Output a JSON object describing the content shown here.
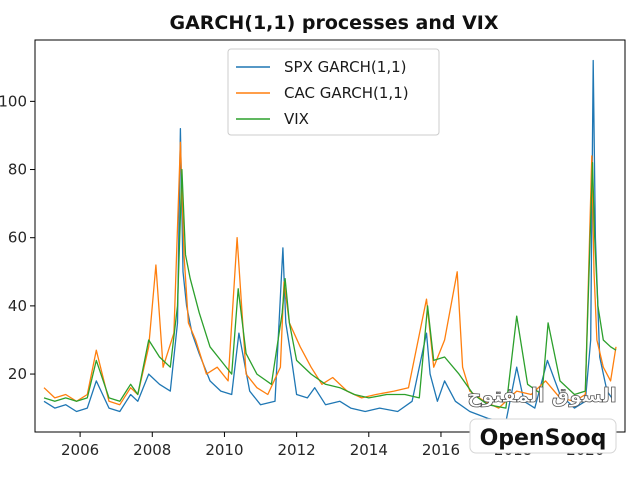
{
  "chart_data": {
    "type": "line",
    "title": "GARCH(1,1) processes and VIX",
    "xlabel": "",
    "ylabel": "",
    "xlim": [
      2004.75,
      2021.1
    ],
    "ylim": [
      3,
      118
    ],
    "grid": false,
    "legend_position": "top-center",
    "x_ticks": [
      "2006",
      "2008",
      "2010",
      "2012",
      "2014",
      "2016",
      "2018",
      "2020"
    ],
    "x_tick_values": [
      2006,
      2008,
      2010,
      2012,
      2014,
      2016,
      2018,
      2020
    ],
    "y_ticks": [
      "20",
      "40",
      "60",
      "80",
      "100"
    ],
    "y_tick_values": [
      20,
      40,
      60,
      80,
      100
    ],
    "series": [
      {
        "name": "SPX GARCH(1,1)",
        "color": "#1f77b4",
        "x": [
          2005.0,
          2005.3,
          2005.6,
          2005.9,
          2006.2,
          2006.45,
          2006.8,
          2007.1,
          2007.4,
          2007.6,
          2007.9,
          2008.2,
          2008.5,
          2008.7,
          2008.78,
          2008.85,
          2008.95,
          2009.1,
          2009.3,
          2009.6,
          2009.9,
          2010.2,
          2010.4,
          2010.7,
          2011.0,
          2011.4,
          2011.62,
          2011.7,
          2011.85,
          2012.0,
          2012.3,
          2012.5,
          2012.8,
          2013.2,
          2013.5,
          2013.9,
          2014.3,
          2014.8,
          2015.2,
          2015.6,
          2015.7,
          2015.9,
          2016.1,
          2016.4,
          2016.8,
          2017.3,
          2017.8,
          2018.1,
          2018.3,
          2018.6,
          2018.95,
          2019.3,
          2019.7,
          2020.0,
          2020.15,
          2020.22,
          2020.28,
          2020.4,
          2020.6,
          2020.8
        ],
        "y": [
          12,
          10,
          11,
          9,
          10,
          18,
          10,
          9,
          14,
          12,
          20,
          17,
          15,
          35,
          92,
          50,
          40,
          32,
          26,
          18,
          15,
          14,
          32,
          15,
          11,
          12,
          57,
          35,
          25,
          14,
          13,
          16,
          11,
          12,
          10,
          9,
          10,
          9,
          12,
          32,
          20,
          12,
          18,
          12,
          9,
          7,
          6,
          22,
          12,
          10,
          24,
          14,
          10,
          12,
          30,
          112,
          60,
          25,
          15,
          12
        ]
      },
      {
        "name": "CAC GARCH(1,1)",
        "color": "#ff7f0e",
        "x": [
          2005.0,
          2005.3,
          2005.6,
          2005.9,
          2006.2,
          2006.45,
          2006.8,
          2007.1,
          2007.4,
          2007.6,
          2007.9,
          2008.1,
          2008.3,
          2008.6,
          2008.78,
          2008.88,
          2009.0,
          2009.2,
          2009.5,
          2009.8,
          2010.1,
          2010.35,
          2010.6,
          2010.9,
          2011.2,
          2011.55,
          2011.65,
          2011.8,
          2012.1,
          2012.4,
          2012.7,
          2013.0,
          2013.4,
          2013.8,
          2014.2,
          2014.7,
          2015.1,
          2015.6,
          2015.8,
          2016.1,
          2016.45,
          2016.6,
          2016.8,
          2017.2,
          2017.6,
          2018.1,
          2018.5,
          2018.9,
          2019.3,
          2019.7,
          2020.0,
          2020.18,
          2020.24,
          2020.32,
          2020.5,
          2020.7,
          2020.85
        ],
        "y": [
          16,
          13,
          14,
          12,
          14,
          27,
          12,
          11,
          16,
          14,
          28,
          52,
          22,
          32,
          88,
          55,
          35,
          30,
          20,
          22,
          18,
          60,
          20,
          16,
          14,
          22,
          47,
          35,
          28,
          22,
          17,
          19,
          15,
          13,
          14,
          15,
          16,
          42,
          22,
          30,
          50,
          22,
          15,
          12,
          10,
          15,
          14,
          18,
          13,
          12,
          14,
          84,
          50,
          30,
          22,
          18,
          28
        ]
      },
      {
        "name": "VIX",
        "color": "#2ca02c",
        "x": [
          2005.0,
          2005.3,
          2005.6,
          2005.9,
          2006.2,
          2006.45,
          2006.8,
          2007.1,
          2007.4,
          2007.6,
          2007.9,
          2008.2,
          2008.5,
          2008.7,
          2008.82,
          2008.92,
          2009.05,
          2009.3,
          2009.6,
          2009.9,
          2010.2,
          2010.38,
          2010.6,
          2010.9,
          2011.3,
          2011.6,
          2011.68,
          2011.8,
          2012.0,
          2012.4,
          2012.8,
          2013.2,
          2013.6,
          2014.0,
          2014.5,
          2015.0,
          2015.4,
          2015.63,
          2015.8,
          2016.1,
          2016.5,
          2016.9,
          2017.3,
          2017.8,
          2018.1,
          2018.4,
          2018.8,
          2018.97,
          2019.3,
          2019.7,
          2020.0,
          2020.2,
          2020.26,
          2020.35,
          2020.5,
          2020.7,
          2020.85
        ],
        "y": [
          13,
          12,
          13,
          12,
          13,
          24,
          13,
          12,
          17,
          14,
          30,
          25,
          22,
          40,
          80,
          55,
          48,
          38,
          28,
          24,
          20,
          45,
          26,
          20,
          17,
          38,
          48,
          35,
          24,
          20,
          17,
          16,
          14,
          13,
          14,
          14,
          13,
          40,
          24,
          25,
          20,
          14,
          11,
          10,
          37,
          17,
          14,
          35,
          18,
          14,
          15,
          82,
          60,
          40,
          30,
          28,
          27
        ]
      }
    ]
  },
  "watermark": {
    "arabic": "السوق المفتوح",
    "latin": "OpenSooq"
  }
}
